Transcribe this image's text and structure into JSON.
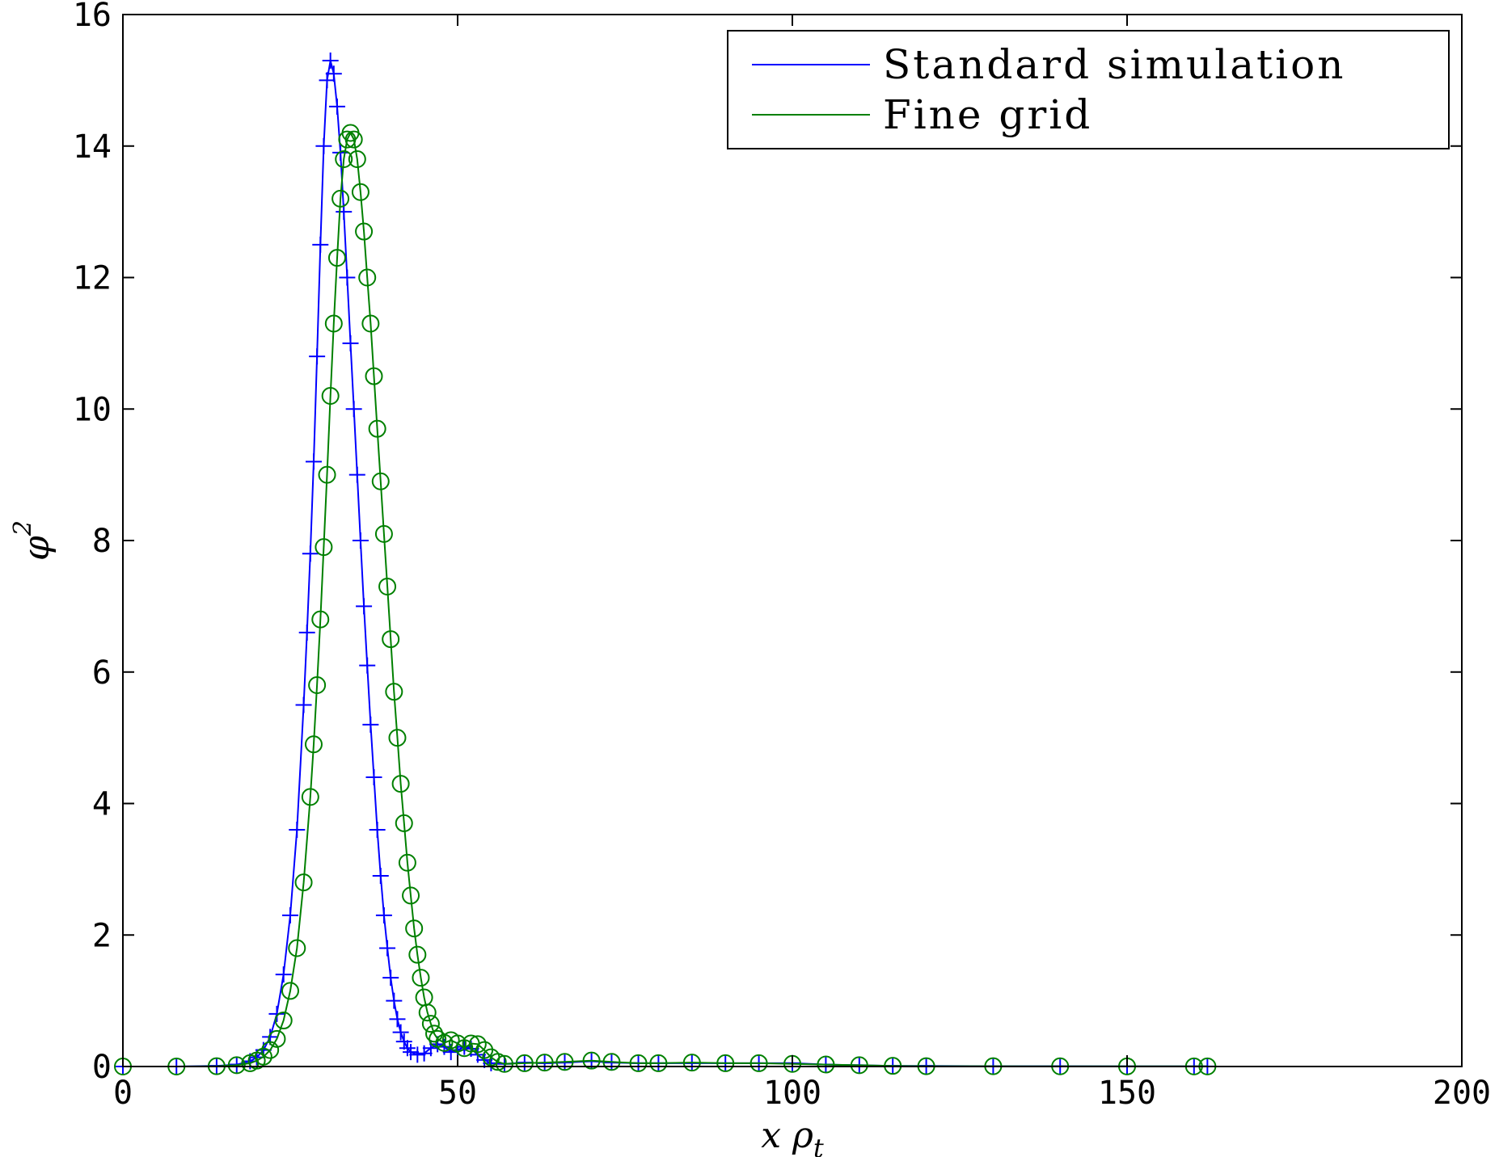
{
  "chart_data": {
    "type": "line",
    "title": "",
    "xlabel": "x ρ",
    "xlabel_sub": "t",
    "ylabel": "φ",
    "ylabel_sup": "2",
    "xlim": [
      0,
      200
    ],
    "ylim": [
      0,
      16
    ],
    "x_ticks": [
      0,
      50,
      100,
      150,
      200
    ],
    "y_ticks": [
      0,
      2,
      4,
      6,
      8,
      10,
      12,
      14,
      16
    ],
    "grid": false,
    "legend_position": "top-right",
    "series": [
      {
        "name": "Standard simulation",
        "color": "#0000ff",
        "marker": "plus",
        "points": [
          [
            0,
            0
          ],
          [
            8,
            0
          ],
          [
            14,
            0.01
          ],
          [
            17,
            0.03
          ],
          [
            19,
            0.08
          ],
          [
            20,
            0.14
          ],
          [
            21,
            0.25
          ],
          [
            22,
            0.45
          ],
          [
            23,
            0.8
          ],
          [
            24,
            1.4
          ],
          [
            25,
            2.3
          ],
          [
            26,
            3.6
          ],
          [
            27,
            5.5
          ],
          [
            27.5,
            6.6
          ],
          [
            28,
            7.8
          ],
          [
            28.5,
            9.2
          ],
          [
            29,
            10.8
          ],
          [
            29.5,
            12.5
          ],
          [
            30,
            14.0
          ],
          [
            30.5,
            15.0
          ],
          [
            31,
            15.3
          ],
          [
            31.5,
            15.1
          ],
          [
            32,
            14.6
          ],
          [
            32.5,
            13.9
          ],
          [
            33,
            13.0
          ],
          [
            33.5,
            12.0
          ],
          [
            34,
            11.0
          ],
          [
            34.5,
            10.0
          ],
          [
            35,
            9.0
          ],
          [
            35.5,
            8.0
          ],
          [
            36,
            7.0
          ],
          [
            36.5,
            6.1
          ],
          [
            37,
            5.2
          ],
          [
            37.5,
            4.4
          ],
          [
            38,
            3.6
          ],
          [
            38.5,
            2.9
          ],
          [
            39,
            2.3
          ],
          [
            39.5,
            1.8
          ],
          [
            40,
            1.35
          ],
          [
            40.5,
            1.0
          ],
          [
            41,
            0.72
          ],
          [
            41.5,
            0.52
          ],
          [
            42,
            0.38
          ],
          [
            42.5,
            0.28
          ],
          [
            43,
            0.22
          ],
          [
            44,
            0.18
          ],
          [
            45,
            0.2
          ],
          [
            46,
            0.28
          ],
          [
            47,
            0.34
          ],
          [
            48,
            0.3
          ],
          [
            49,
            0.22
          ],
          [
            50,
            0.25
          ],
          [
            51,
            0.3
          ],
          [
            52,
            0.27
          ],
          [
            53,
            0.18
          ],
          [
            54,
            0.1
          ],
          [
            55,
            0.05
          ],
          [
            57,
            0.04
          ],
          [
            60,
            0.06
          ],
          [
            63,
            0.05
          ],
          [
            66,
            0.06
          ],
          [
            70,
            0.08
          ],
          [
            73,
            0.06
          ],
          [
            77,
            0.05
          ],
          [
            80,
            0.05
          ],
          [
            85,
            0.05
          ],
          [
            90,
            0.05
          ],
          [
            95,
            0.05
          ],
          [
            100,
            0.05
          ],
          [
            105,
            0.03
          ],
          [
            110,
            0.02
          ],
          [
            115,
            0.01
          ],
          [
            120,
            0.01
          ],
          [
            130,
            0.005
          ],
          [
            140,
            0.005
          ],
          [
            150,
            0.002
          ],
          [
            160,
            0.002
          ],
          [
            162,
            0.002
          ]
        ]
      },
      {
        "name": "Fine grid",
        "color": "#008000",
        "marker": "circle",
        "points": [
          [
            0,
            0
          ],
          [
            8,
            0
          ],
          [
            14,
            0.005
          ],
          [
            17,
            0.02
          ],
          [
            19,
            0.05
          ],
          [
            20,
            0.09
          ],
          [
            21,
            0.15
          ],
          [
            22,
            0.25
          ],
          [
            23,
            0.42
          ],
          [
            24,
            0.7
          ],
          [
            25,
            1.15
          ],
          [
            26,
            1.8
          ],
          [
            27,
            2.8
          ],
          [
            28,
            4.1
          ],
          [
            28.5,
            4.9
          ],
          [
            29,
            5.8
          ],
          [
            29.5,
            6.8
          ],
          [
            30,
            7.9
          ],
          [
            30.5,
            9.0
          ],
          [
            31,
            10.2
          ],
          [
            31.5,
            11.3
          ],
          [
            32,
            12.3
          ],
          [
            32.5,
            13.2
          ],
          [
            33,
            13.8
          ],
          [
            33.5,
            14.1
          ],
          [
            34,
            14.2
          ],
          [
            34.5,
            14.1
          ],
          [
            35,
            13.8
          ],
          [
            35.5,
            13.3
          ],
          [
            36,
            12.7
          ],
          [
            36.5,
            12.0
          ],
          [
            37,
            11.3
          ],
          [
            37.5,
            10.5
          ],
          [
            38,
            9.7
          ],
          [
            38.5,
            8.9
          ],
          [
            39,
            8.1
          ],
          [
            39.5,
            7.3
          ],
          [
            40,
            6.5
          ],
          [
            40.5,
            5.7
          ],
          [
            41,
            5.0
          ],
          [
            41.5,
            4.3
          ],
          [
            42,
            3.7
          ],
          [
            42.5,
            3.1
          ],
          [
            43,
            2.6
          ],
          [
            43.5,
            2.1
          ],
          [
            44,
            1.7
          ],
          [
            44.5,
            1.35
          ],
          [
            45,
            1.05
          ],
          [
            45.5,
            0.82
          ],
          [
            46,
            0.65
          ],
          [
            46.5,
            0.5
          ],
          [
            47,
            0.42
          ],
          [
            48,
            0.36
          ],
          [
            49,
            0.4
          ],
          [
            50,
            0.35
          ],
          [
            51,
            0.28
          ],
          [
            52,
            0.35
          ],
          [
            53,
            0.34
          ],
          [
            54,
            0.25
          ],
          [
            55,
            0.14
          ],
          [
            56,
            0.07
          ],
          [
            57,
            0.04
          ],
          [
            60,
            0.05
          ],
          [
            63,
            0.06
          ],
          [
            66,
            0.07
          ],
          [
            70,
            0.09
          ],
          [
            73,
            0.07
          ],
          [
            77,
            0.05
          ],
          [
            80,
            0.05
          ],
          [
            85,
            0.06
          ],
          [
            90,
            0.05
          ],
          [
            95,
            0.05
          ],
          [
            100,
            0.04
          ],
          [
            105,
            0.03
          ],
          [
            110,
            0.02
          ],
          [
            115,
            0.01
          ],
          [
            120,
            0.005
          ],
          [
            130,
            0.005
          ],
          [
            140,
            0.003
          ],
          [
            150,
            0.002
          ],
          [
            160,
            0.002
          ],
          [
            162,
            0.002
          ]
        ]
      }
    ]
  }
}
